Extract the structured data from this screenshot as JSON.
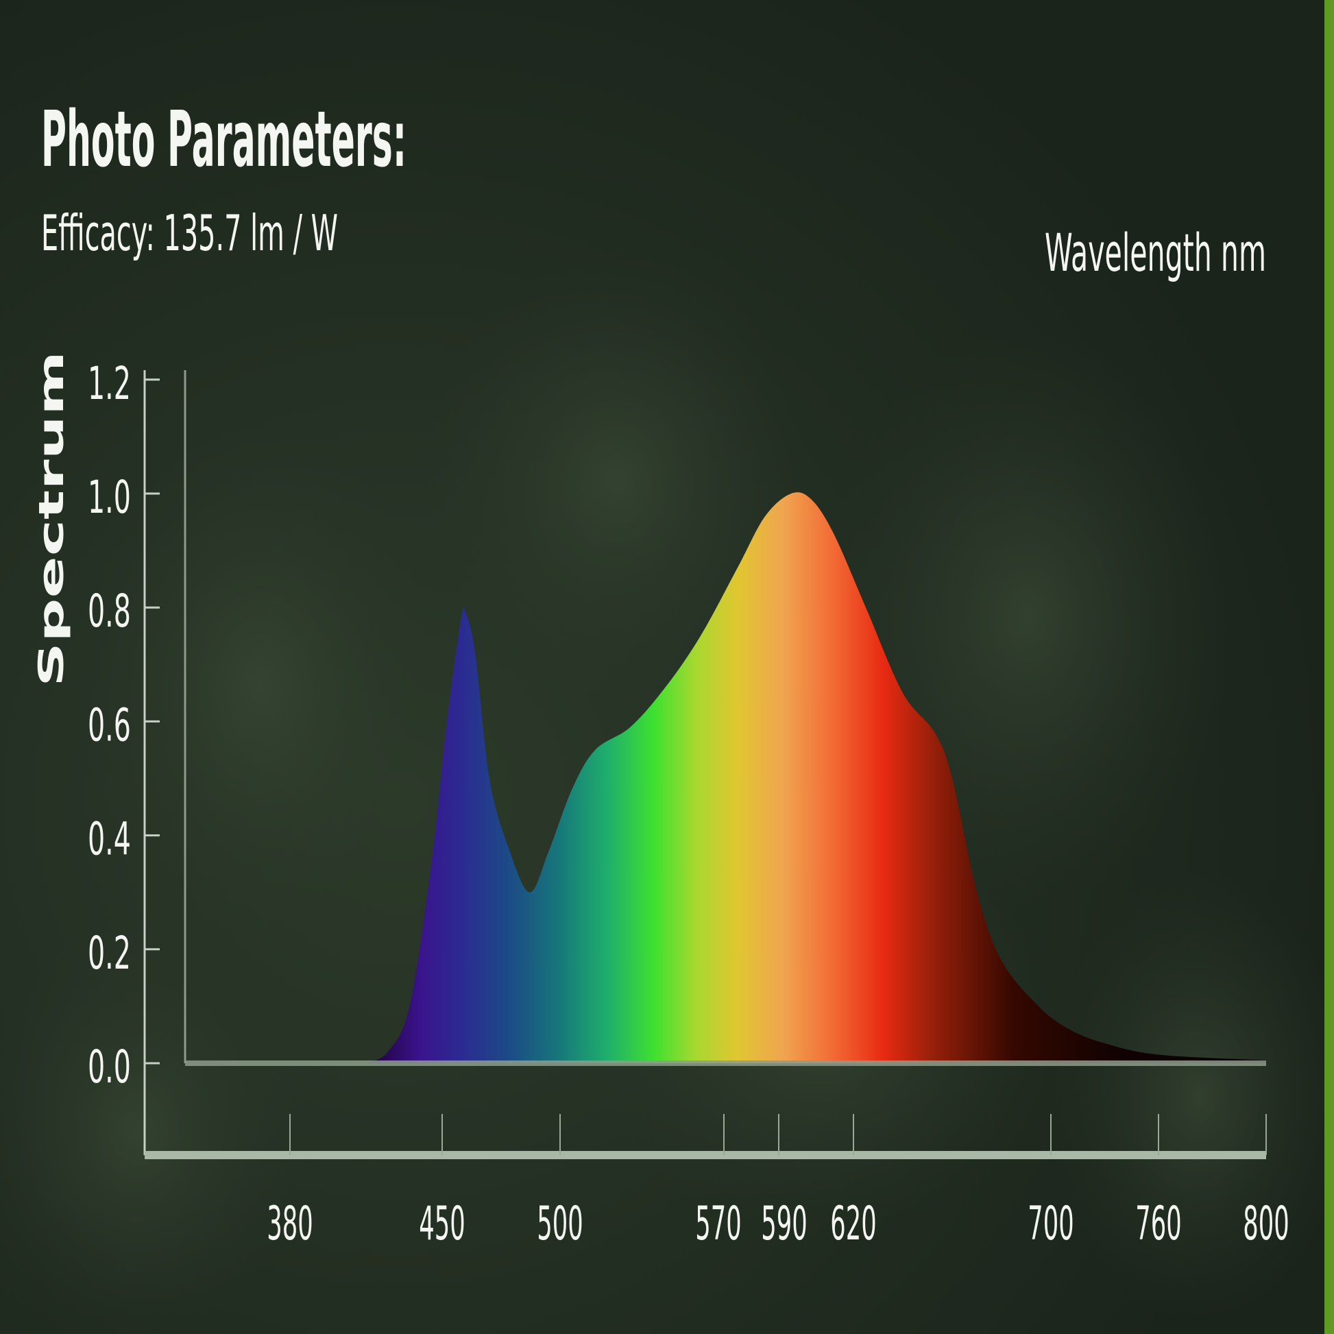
{
  "header": {
    "title": "Photo Parameters:",
    "efficacy": "Efficacy: 135.7 lm / W"
  },
  "colors": {
    "background": "#1f2a1f",
    "text": "#f4f6f2",
    "axis": "#a8b6a6",
    "edge_accent": "#5f9a22"
  },
  "chart_data": {
    "type": "area",
    "title": "",
    "xlabel": "Wavelength nm",
    "ylabel": "Spectrum",
    "ylim": [
      0,
      1.2
    ],
    "xlim": [
      380,
      800
    ],
    "grid": false,
    "y_ticks": [
      "0.0",
      "0.2",
      "0.4",
      "0.6",
      "0.8",
      "1.0",
      "1.2"
    ],
    "x_ticks": [
      "380",
      "450",
      "500",
      "570",
      "590",
      "620",
      "700",
      "760",
      "800"
    ],
    "fill": "visible-spectrum gradient",
    "series": [
      {
        "x": [
          415,
          425,
          435,
          445,
          452,
          458,
          460,
          464,
          470,
          478,
          487,
          495,
          505,
          515,
          530,
          545,
          560,
          575,
          585,
          595,
          603,
          612,
          625,
          640,
          653,
          660,
          670,
          680,
          695,
          710,
          730,
          760,
          800
        ],
        "y": [
          0,
          0.02,
          0.1,
          0.35,
          0.6,
          0.78,
          0.79,
          0.72,
          0.5,
          0.38,
          0.3,
          0.37,
          0.48,
          0.55,
          0.59,
          0.66,
          0.75,
          0.87,
          0.96,
          1.0,
          0.99,
          0.93,
          0.8,
          0.65,
          0.58,
          0.5,
          0.3,
          0.18,
          0.1,
          0.06,
          0.035,
          0.015,
          0.005
        ]
      }
    ]
  }
}
